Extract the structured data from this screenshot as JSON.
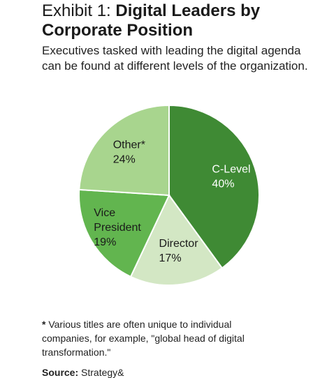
{
  "header": {
    "title_prefix": "Exhibit 1: ",
    "title_main": "Digital Leaders by Corporate Position",
    "subtitle": "Executives tasked with leading the digital agenda can be found at different levels of the organization."
  },
  "chart_data": {
    "type": "pie",
    "categories": [
      "C-Level",
      "Director",
      "Vice President",
      "Other*"
    ],
    "values": [
      40,
      17,
      19,
      24
    ],
    "value_labels": [
      "40%",
      "17%",
      "19%",
      "24%"
    ],
    "colors": [
      "#3f8a34",
      "#d3e7c4",
      "#62b54f",
      "#a8d58e"
    ],
    "label_colors": [
      "#ffffff",
      "#1a1a1a",
      "#1a1a1a",
      "#1a1a1a"
    ]
  },
  "footer": {
    "footnote_mark": "*",
    "footnote_text": " Various titles are often unique to individual companies, for example, \"global head of digital transformation.\"",
    "source_label": "Source:",
    "source_text": " Strategy&"
  }
}
